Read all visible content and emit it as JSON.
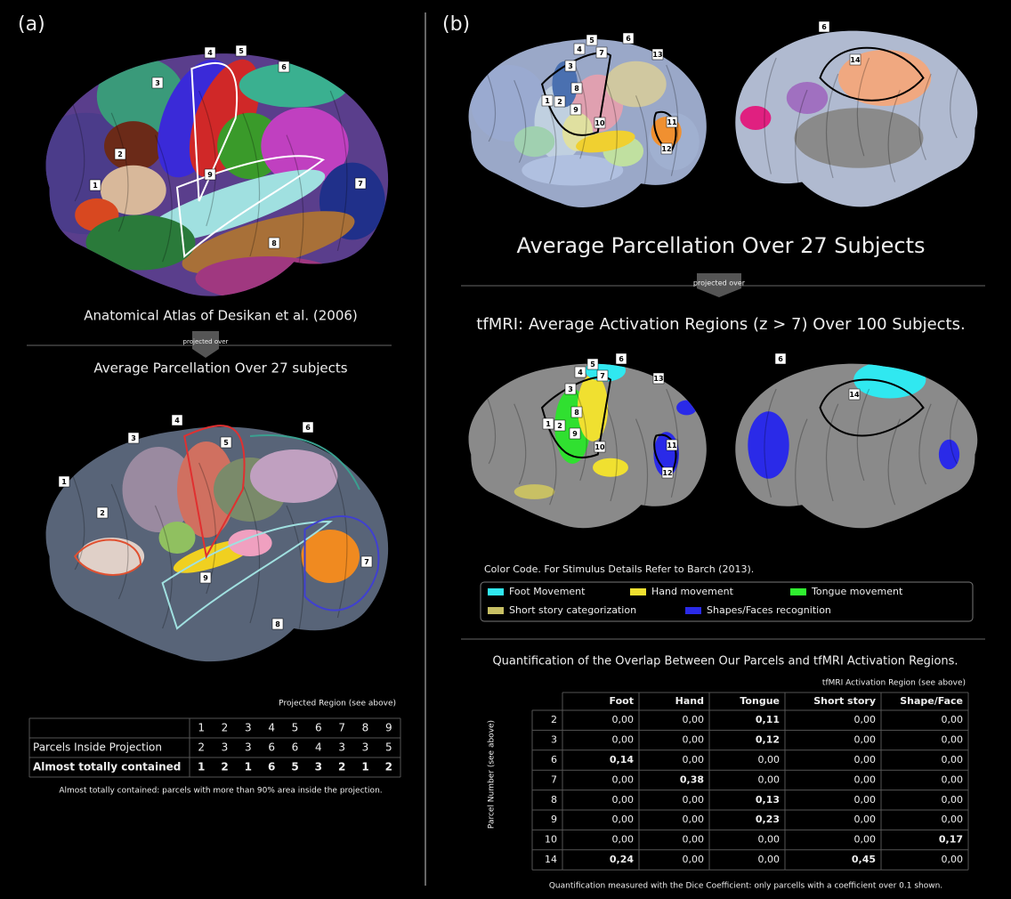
{
  "panel_a": {
    "label": "(a)",
    "atlas_labels": [
      "1",
      "2",
      "3",
      "4",
      "5",
      "6",
      "7",
      "8",
      "9"
    ],
    "atlas_caption": "Anatomical Atlas of Desikan et al. (2006)",
    "arrow_text": "projected over",
    "projection_caption": "Average Parcellation Over 27 subjects",
    "projection_labels": [
      "1",
      "2",
      "3",
      "4",
      "5",
      "6",
      "7",
      "8",
      "9"
    ],
    "table": {
      "title": "Projected Region (see above)",
      "columns": [
        "1",
        "2",
        "3",
        "4",
        "5",
        "6",
        "7",
        "8",
        "9"
      ],
      "rows": [
        {
          "label": "Parcels Inside Projection",
          "cells": [
            "2",
            "3",
            "3",
            "6",
            "6",
            "4",
            "3",
            "3",
            "5"
          ]
        },
        {
          "label": "Almost totally contained",
          "cells": [
            "1",
            "2",
            "1",
            "6",
            "5",
            "3",
            "2",
            "1",
            "2"
          ]
        }
      ]
    },
    "note": "Almost totally contained: parcels with more than 90% area inside the projection."
  },
  "panel_b": {
    "label": "(b)",
    "lateral_labels": [
      "1",
      "2",
      "3",
      "4",
      "5",
      "6",
      "7",
      "8",
      "9",
      "10",
      "11",
      "12",
      "13"
    ],
    "medial_labels": [
      "6",
      "14"
    ],
    "parcellation_caption": "Average Parcellation Over 27 Subjects",
    "arrow_text": "projected over",
    "tfmri_caption": "tfMRI: Average Activation Regions (z > 7) Over 100 Subjects.",
    "legend": {
      "title": "Color Code. For Stimulus Details Refer to Barch (2013).",
      "items": [
        {
          "name": "Foot Movement",
          "color": "#30e8f0"
        },
        {
          "name": "Hand movement",
          "color": "#f0e030"
        },
        {
          "name": "Tongue movement",
          "color": "#30f030"
        },
        {
          "name": "Short story categorization",
          "color": "#c8c064"
        },
        {
          "name": "Shapes/Faces recognition",
          "color": "#2a2ae8"
        }
      ]
    },
    "quantification": {
      "title": "Quantification of the Overlap Between Our Parcels and tfMRI Activation Regions.",
      "column_group": "tfMRI Activation Region (see above)",
      "row_axis": "Parcel Number (see above)",
      "columns": [
        "Foot",
        "Hand",
        "Tongue",
        "Short story",
        "Shape/Face"
      ],
      "rows": [
        {
          "parcel": "2",
          "cells": [
            "0,00",
            "0,00",
            "0,11",
            "0,00",
            "0,00"
          ]
        },
        {
          "parcel": "3",
          "cells": [
            "0,00",
            "0,00",
            "0,12",
            "0,00",
            "0,00"
          ]
        },
        {
          "parcel": "6",
          "cells": [
            "0,14",
            "0,00",
            "0,00",
            "0,00",
            "0,00"
          ]
        },
        {
          "parcel": "7",
          "cells": [
            "0,00",
            "0,38",
            "0,00",
            "0,00",
            "0,00"
          ]
        },
        {
          "parcel": "8",
          "cells": [
            "0,00",
            "0,00",
            "0,13",
            "0,00",
            "0,00"
          ]
        },
        {
          "parcel": "9",
          "cells": [
            "0,00",
            "0,00",
            "0,23",
            "0,00",
            "0,00"
          ]
        },
        {
          "parcel": "10",
          "cells": [
            "0,00",
            "0,00",
            "0,00",
            "0,00",
            "0,17"
          ]
        },
        {
          "parcel": "14",
          "cells": [
            "0,24",
            "0,00",
            "0,00",
            "0,45",
            "0,00"
          ]
        }
      ]
    },
    "footnote": "Quantification measured with the Dice Coefficient: only parcells with a coefficient over 0.1 shown."
  }
}
